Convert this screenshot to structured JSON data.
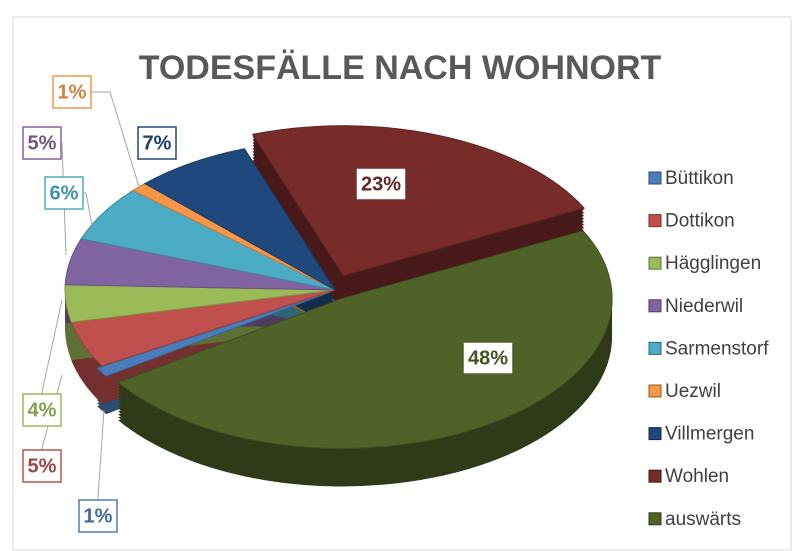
{
  "chart_data": {
    "type": "pie",
    "title": "TODESFÄLLE NACH WOHNORT",
    "categories": [
      "Büttikon",
      "Dottikon",
      "Hägglingen",
      "Niederwil",
      "Sarmenstorf",
      "Uezwil",
      "Villmergen",
      "Wohlen",
      "auswärts"
    ],
    "values": [
      1,
      5,
      4,
      5,
      6,
      1,
      7,
      23,
      48
    ],
    "value_labels": [
      "1%",
      "5%",
      "4%",
      "5%",
      "6%",
      "1%",
      "7%",
      "23%",
      "48%"
    ],
    "colors": [
      "#4a7ebb",
      "#c0504d",
      "#9bbb59",
      "#8064a2",
      "#4bacc6",
      "#f79646",
      "#1f497d",
      "#772c2a",
      "#4f6228"
    ],
    "legend": "right"
  }
}
